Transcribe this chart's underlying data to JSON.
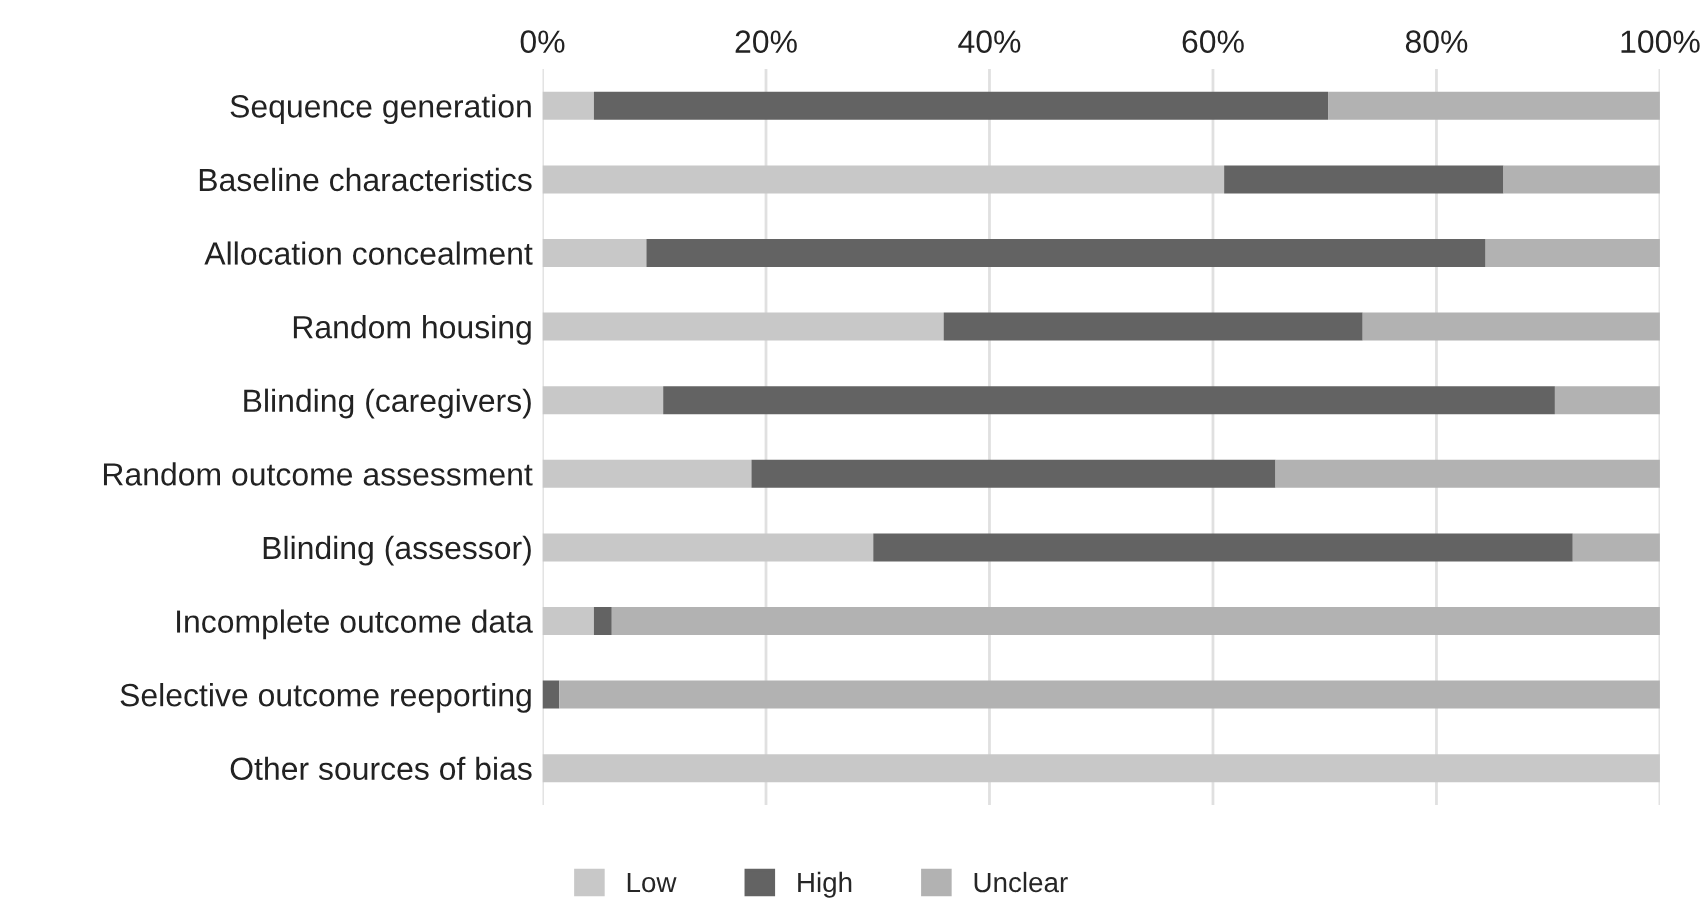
{
  "chart_data": {
    "type": "bar",
    "orientation": "horizontal",
    "stacked": true,
    "categories": [
      "Sequence generation",
      "Baseline characteristics",
      "Allocation concealment",
      "Random housing",
      "Blinding (caregivers)",
      "Random outcome assessment",
      "Blinding (assessor)",
      "Incomplete outcome data",
      "Selective outcome reeporting",
      "Other sources of bias"
    ],
    "series": [
      {
        "name": "Low",
        "color": "#c8c8c8",
        "values": [
          4.6,
          61.0,
          9.3,
          35.9,
          10.8,
          18.7,
          29.6,
          4.6,
          0,
          100
        ]
      },
      {
        "name": "High",
        "color": "#636363",
        "values": [
          65.7,
          25.0,
          75.1,
          37.5,
          79.8,
          46.9,
          62.6,
          1.6,
          1.5,
          0
        ]
      },
      {
        "name": "Unclear",
        "color": "#b2b2b2",
        "values": [
          29.7,
          14.0,
          15.6,
          26.6,
          9.4,
          34.4,
          7.8,
          93.8,
          98.5,
          0
        ]
      }
    ],
    "xlim": [
      0,
      100
    ],
    "xticks": [
      {
        "value": 0,
        "label": "0%"
      },
      {
        "value": 20,
        "label": "20%"
      },
      {
        "value": 40,
        "label": "40%"
      },
      {
        "value": 60,
        "label": "60%"
      },
      {
        "value": 80,
        "label": "80%"
      },
      {
        "value": 100,
        "label": "100%"
      }
    ],
    "grid": "x",
    "legend": "bottom"
  }
}
